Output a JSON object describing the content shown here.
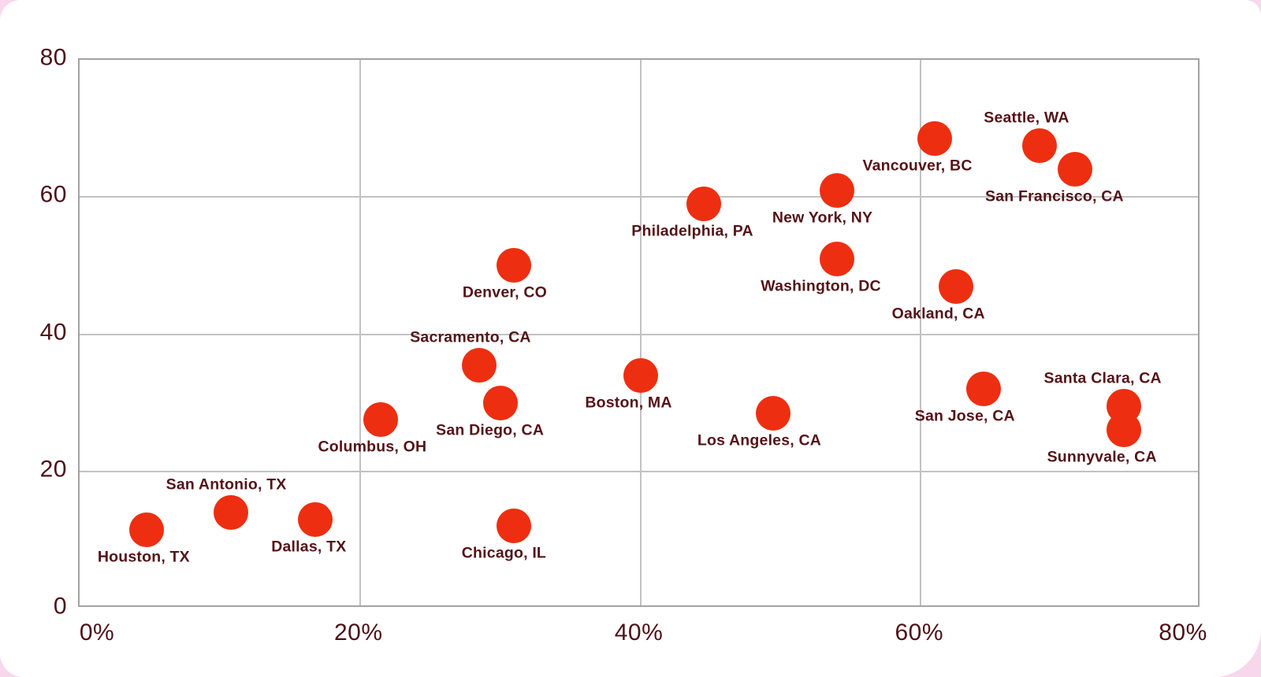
{
  "page": {
    "background_color": "#f8d7ec",
    "card_color": "#ffffff"
  },
  "chart_data": {
    "type": "scatter",
    "title": "",
    "xlabel": "",
    "ylabel": "",
    "xlim": [
      0,
      80
    ],
    "ylim": [
      0,
      80
    ],
    "grid": true,
    "legend": "none",
    "point_color": "#ee2e10",
    "text_color": "#541418",
    "axis_tick_color": "#4d1118",
    "gridline_color": "#c2c2c2",
    "border_color": "#a2a2a2",
    "x_ticks": [
      {
        "label": "0%",
        "value": 0,
        "dx": 24
      },
      {
        "label": "20%",
        "value": 20,
        "dx": 0
      },
      {
        "label": "40%",
        "value": 40,
        "dx": 0
      },
      {
        "label": "60%",
        "value": 60,
        "dx": 0
      },
      {
        "label": "80%",
        "value": 80,
        "dx": -21
      }
    ],
    "y_ticks": [
      {
        "label": "0",
        "value": 0
      },
      {
        "label": "20",
        "value": 20
      },
      {
        "label": "40",
        "value": 40
      },
      {
        "label": "60",
        "value": 60
      },
      {
        "label": "80",
        "value": 80
      }
    ],
    "points": [
      {
        "label": "Houston, TX",
        "x": 4.8,
        "y": 11.5,
        "label_pos": "below",
        "label_dx": -4
      },
      {
        "label": "San Antonio, TX",
        "x": 10.8,
        "y": 14,
        "label_pos": "above",
        "label_dx": -6
      },
      {
        "label": "Dallas, TX",
        "x": 16.8,
        "y": 13,
        "label_pos": "below",
        "label_dx": -8
      },
      {
        "label": "Chicago, IL",
        "x": 31,
        "y": 12,
        "label_pos": "below",
        "label_dx": -13
      },
      {
        "label": "Columbus, OH",
        "x": 21.5,
        "y": 27.5,
        "label_pos": "below",
        "label_dx": -11
      },
      {
        "label": "San Diego, CA",
        "x": 30,
        "y": 30,
        "label_pos": "below",
        "label_dx": -13
      },
      {
        "label": "Sacramento, CA",
        "x": 28.5,
        "y": 35.5,
        "label_pos": "above",
        "label_dx": -11
      },
      {
        "label": "Denver, CO",
        "x": 31,
        "y": 50,
        "label_pos": "below",
        "label_dx": -12
      },
      {
        "label": "Boston, MA",
        "x": 40,
        "y": 34,
        "label_pos": "below",
        "label_dx": -15
      },
      {
        "label": "Los Angeles, CA",
        "x": 49.5,
        "y": 28.5,
        "label_pos": "below",
        "label_dx": -18
      },
      {
        "label": "Philadelphia, PA",
        "x": 44.5,
        "y": 59,
        "label_pos": "below",
        "label_dx": -14
      },
      {
        "label": "New York, NY",
        "x": 54,
        "y": 61,
        "label_pos": "below",
        "label_dx": -18
      },
      {
        "label": "Washington, DC",
        "x": 54,
        "y": 51,
        "label_pos": "below",
        "label_dx": -20
      },
      {
        "label": "Vancouver, BC",
        "x": 61,
        "y": 68.5,
        "label_pos": "below",
        "label_dx": -22
      },
      {
        "label": "Seattle, WA",
        "x": 68.5,
        "y": 67.5,
        "label_pos": "above",
        "label_dx": -17
      },
      {
        "label": "San Francisco, CA",
        "x": 71,
        "y": 64,
        "label_pos": "below",
        "label_dx": -26
      },
      {
        "label": "Oakland, CA",
        "x": 62.5,
        "y": 47,
        "label_pos": "below",
        "label_dx": -22
      },
      {
        "label": "San Jose, CA",
        "x": 64.5,
        "y": 32,
        "label_pos": "below",
        "label_dx": -24
      },
      {
        "label": "Santa Clara, CA",
        "x": 74.5,
        "y": 29.5,
        "label_pos": "above",
        "label_dx": -27
      },
      {
        "label": "Sunnyvale, CA",
        "x": 74.5,
        "y": 26,
        "label_pos": "below",
        "label_dx": -28
      }
    ]
  }
}
